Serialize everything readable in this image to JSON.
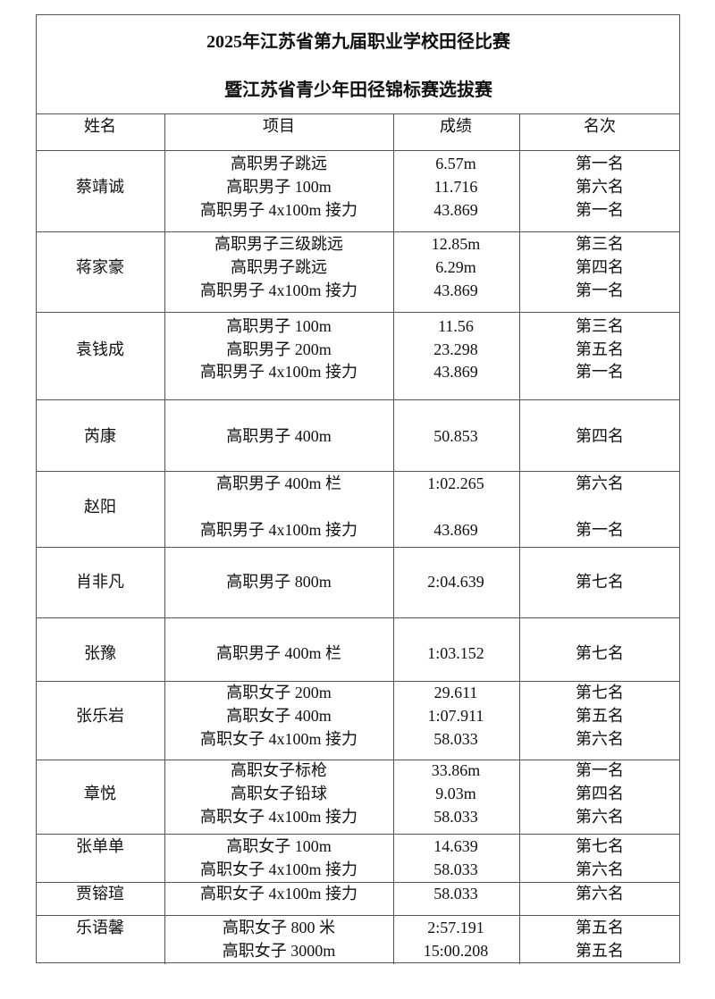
{
  "title_lines": [
    "2025年江苏省第九届职业学校田径比赛",
    "暨江苏省青少年田径锦标赛选拔赛"
  ],
  "headers": [
    "姓名",
    "项目",
    "成绩",
    "名次"
  ],
  "rows": [
    {
      "name": "蔡靖诚",
      "entries": [
        {
          "event": "高职男子跳远",
          "result": "6.57m",
          "rank": "第一名"
        },
        {
          "event": "高职男子 100m",
          "result": "11.716",
          "rank": "第六名"
        },
        {
          "event": "高职男子 4x100m 接力",
          "result": "43.869",
          "rank": "第一名"
        }
      ]
    },
    {
      "name": "蒋家豪",
      "entries": [
        {
          "event": "高职男子三级跳远",
          "result": "12.85m",
          "rank": "第三名"
        },
        {
          "event": "高职男子跳远",
          "result": "6.29m",
          "rank": "第四名"
        },
        {
          "event": "高职男子 4x100m 接力",
          "result": "43.869",
          "rank": "第一名"
        }
      ]
    },
    {
      "name": "袁钱成",
      "entries": [
        {
          "event": "高职男子 100m",
          "result": "11.56",
          "rank": "第三名"
        },
        {
          "event": "高职男子 200m",
          "result": "23.298",
          "rank": "第五名"
        },
        {
          "event": "高职男子 4x100m 接力",
          "result": "43.869",
          "rank": "第一名"
        }
      ]
    },
    {
      "name": "芮康",
      "entries": [
        {
          "event": "高职男子 400m",
          "result": "50.853",
          "rank": "第四名"
        }
      ]
    },
    {
      "name": "赵阳",
      "entries": [
        {
          "event": "高职男子 400m 栏",
          "result": "1:02.265",
          "rank": "第六名"
        },
        {
          "event": "高职男子 4x100m 接力",
          "result": "43.869",
          "rank": "第一名"
        }
      ]
    },
    {
      "name": "肖非凡",
      "entries": [
        {
          "event": "高职男子 800m",
          "result": "2:04.639",
          "rank": "第七名"
        }
      ]
    },
    {
      "name": "张豫",
      "entries": [
        {
          "event": "高职男子 400m 栏",
          "result": "1:03.152",
          "rank": "第七名"
        }
      ]
    },
    {
      "name": "张乐岩",
      "entries": [
        {
          "event": "高职女子 200m",
          "result": "29.611",
          "rank": "第七名"
        },
        {
          "event": "高职女子 400m",
          "result": "1:07.911",
          "rank": "第五名"
        },
        {
          "event": "高职女子 4x100m 接力",
          "result": "58.033",
          "rank": "第六名"
        }
      ]
    },
    {
      "name": "章悦",
      "entries": [
        {
          "event": "高职女子标枪",
          "result": "33.86m",
          "rank": "第一名"
        },
        {
          "event": "高职女子铅球",
          "result": "9.03m",
          "rank": "第四名"
        },
        {
          "event": "高职女子 4x100m 接力",
          "result": "58.033",
          "rank": "第六名"
        }
      ]
    },
    {
      "name": "张单单",
      "entries": [
        {
          "event": "高职女子 100m",
          "result": "14.639",
          "rank": "第七名"
        },
        {
          "event": "高职女子 4x100m 接力",
          "result": "58.033",
          "rank": "第六名"
        }
      ]
    },
    {
      "name": "贾镕瑄",
      "entries": [
        {
          "event": "高职女子 4x100m 接力",
          "result": "58.033",
          "rank": "第六名"
        }
      ]
    },
    {
      "name": "乐语馨",
      "entries": [
        {
          "event": "高职女子 800 米",
          "result": "2:57.191",
          "rank": "第五名"
        },
        {
          "event": "高职女子 3000m",
          "result": "15:00.208",
          "rank": "第五名"
        }
      ]
    }
  ]
}
